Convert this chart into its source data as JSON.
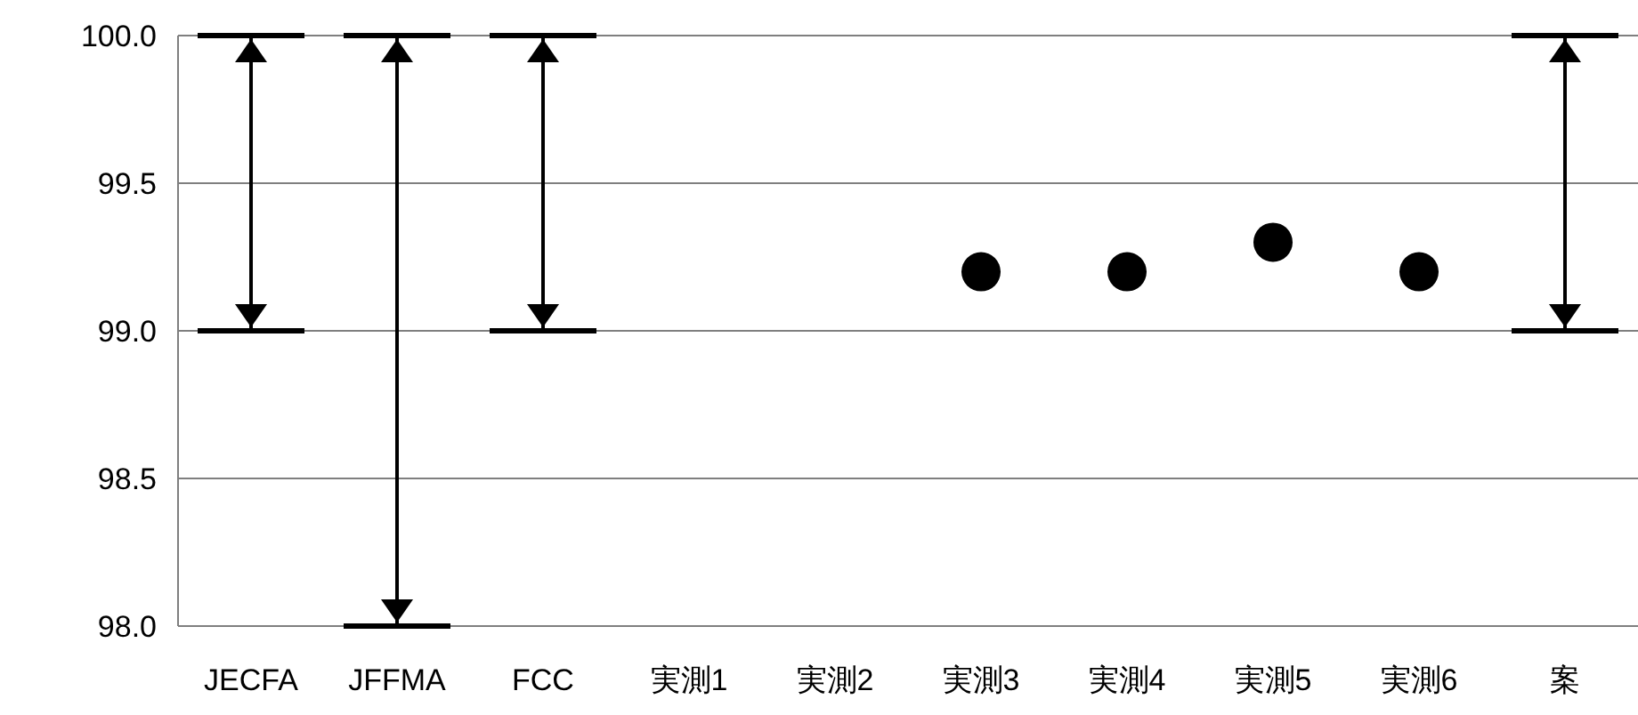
{
  "chart_data": {
    "type": "bar",
    "categories": [
      "JECFA",
      "JFFMA",
      "FCC",
      "実測1",
      "実測2",
      "実測3",
      "実測4",
      "実測5",
      "実測6",
      "案"
    ],
    "ylim": [
      98,
      100
    ],
    "yticks": [
      {
        "value": 98,
        "label": "98.0"
      },
      {
        "value": 98.5,
        "label": "98.5"
      },
      {
        "value": 99,
        "label": "99.0"
      },
      {
        "value": 99.5,
        "label": "99.5"
      },
      {
        "value": 100,
        "label": "100.0"
      }
    ],
    "grid": "y",
    "series": [
      {
        "color": "#000000",
        "base": [
          99,
          98,
          99,
          null,
          null,
          null,
          null,
          null,
          null,
          99
        ],
        "values": [
          1,
          2,
          1,
          null,
          null,
          null,
          null,
          null,
          null,
          1
        ]
      },
      {
        "type": "scatter",
        "color": "#000000",
        "marker": "circle",
        "values": [
          null,
          null,
          null,
          null,
          null,
          99.2,
          99.2,
          99.3,
          99.2,
          null
        ]
      }
    ]
  }
}
